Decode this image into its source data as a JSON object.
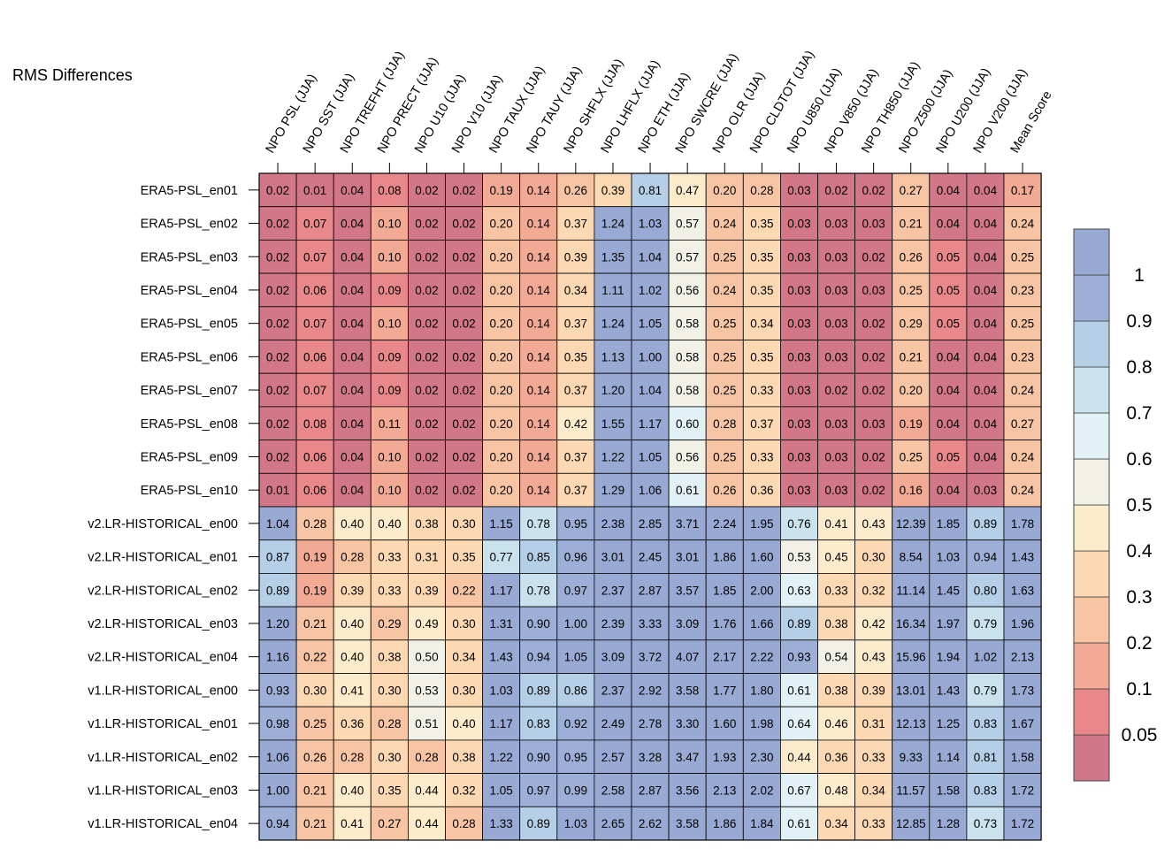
{
  "chart_data": {
    "type": "heatmap",
    "title": "RMS Differences",
    "columns": [
      "NPO PSL (JJA)",
      "NPO SST (JJA)",
      "NPO TREFHT (JJA)",
      "NPO PRECT (JJA)",
      "NPO U10 (JJA)",
      "NPO V10 (JJA)",
      "NPO TAUX (JJA)",
      "NPO TAUY (JJA)",
      "NPO SHFLX (JJA)",
      "NPO LHFLX (JJA)",
      "NPO ETH (JJA)",
      "NPO SWCRE (JJA)",
      "NPO OLR (JJA)",
      "NPO CLDTOT (JJA)",
      "NPO U850 (JJA)",
      "NPO V850 (JJA)",
      "NPO TH850 (JJA)",
      "NPO Z500 (JJA)",
      "NPO U200 (JJA)",
      "NPO V200 (JJA)",
      "Mean Score"
    ],
    "rows": [
      "ERA5-PSL_en01",
      "ERA5-PSL_en02",
      "ERA5-PSL_en03",
      "ERA5-PSL_en04",
      "ERA5-PSL_en05",
      "ERA5-PSL_en06",
      "ERA5-PSL_en07",
      "ERA5-PSL_en08",
      "ERA5-PSL_en09",
      "ERA5-PSL_en10",
      "v2.LR-HISTORICAL_en00",
      "v2.LR-HISTORICAL_en01",
      "v2.LR-HISTORICAL_en02",
      "v2.LR-HISTORICAL_en03",
      "v2.LR-HISTORICAL_en04",
      "v1.LR-HISTORICAL_en00",
      "v1.LR-HISTORICAL_en01",
      "v1.LR-HISTORICAL_en02",
      "v1.LR-HISTORICAL_en03",
      "v1.LR-HISTORICAL_en04"
    ],
    "values": [
      [
        "0.02",
        "0.01",
        "0.04",
        "0.08",
        "0.02",
        "0.02",
        "0.19",
        "0.14",
        "0.26",
        "0.39",
        "0.81",
        "0.47",
        "0.20",
        "0.28",
        "0.03",
        "0.02",
        "0.02",
        "0.27",
        "0.04",
        "0.04",
        "0.17"
      ],
      [
        "0.02",
        "0.07",
        "0.04",
        "0.10",
        "0.02",
        "0.02",
        "0.20",
        "0.14",
        "0.37",
        "1.24",
        "1.03",
        "0.57",
        "0.24",
        "0.35",
        "0.03",
        "0.03",
        "0.03",
        "0.21",
        "0.04",
        "0.04",
        "0.24"
      ],
      [
        "0.02",
        "0.07",
        "0.04",
        "0.10",
        "0.02",
        "0.02",
        "0.20",
        "0.14",
        "0.39",
        "1.35",
        "1.04",
        "0.57",
        "0.25",
        "0.35",
        "0.03",
        "0.03",
        "0.02",
        "0.26",
        "0.05",
        "0.04",
        "0.25"
      ],
      [
        "0.02",
        "0.06",
        "0.04",
        "0.09",
        "0.02",
        "0.02",
        "0.20",
        "0.14",
        "0.34",
        "1.11",
        "1.02",
        "0.56",
        "0.24",
        "0.35",
        "0.03",
        "0.03",
        "0.03",
        "0.25",
        "0.05",
        "0.04",
        "0.23"
      ],
      [
        "0.02",
        "0.07",
        "0.04",
        "0.10",
        "0.02",
        "0.02",
        "0.20",
        "0.14",
        "0.37",
        "1.24",
        "1.05",
        "0.58",
        "0.25",
        "0.34",
        "0.03",
        "0.03",
        "0.02",
        "0.29",
        "0.05",
        "0.04",
        "0.25"
      ],
      [
        "0.02",
        "0.06",
        "0.04",
        "0.09",
        "0.02",
        "0.02",
        "0.20",
        "0.14",
        "0.35",
        "1.13",
        "1.00",
        "0.58",
        "0.25",
        "0.35",
        "0.03",
        "0.03",
        "0.02",
        "0.21",
        "0.04",
        "0.04",
        "0.23"
      ],
      [
        "0.02",
        "0.07",
        "0.04",
        "0.09",
        "0.02",
        "0.02",
        "0.20",
        "0.14",
        "0.37",
        "1.20",
        "1.04",
        "0.58",
        "0.25",
        "0.33",
        "0.03",
        "0.02",
        "0.02",
        "0.20",
        "0.04",
        "0.04",
        "0.24"
      ],
      [
        "0.02",
        "0.08",
        "0.04",
        "0.11",
        "0.02",
        "0.02",
        "0.20",
        "0.14",
        "0.42",
        "1.55",
        "1.17",
        "0.60",
        "0.28",
        "0.37",
        "0.03",
        "0.03",
        "0.03",
        "0.19",
        "0.04",
        "0.04",
        "0.27"
      ],
      [
        "0.02",
        "0.06",
        "0.04",
        "0.10",
        "0.02",
        "0.02",
        "0.20",
        "0.14",
        "0.37",
        "1.22",
        "1.05",
        "0.56",
        "0.25",
        "0.33",
        "0.03",
        "0.03",
        "0.02",
        "0.25",
        "0.05",
        "0.04",
        "0.24"
      ],
      [
        "0.01",
        "0.06",
        "0.04",
        "0.10",
        "0.02",
        "0.02",
        "0.20",
        "0.14",
        "0.37",
        "1.29",
        "1.06",
        "0.61",
        "0.26",
        "0.36",
        "0.03",
        "0.03",
        "0.02",
        "0.16",
        "0.04",
        "0.03",
        "0.24"
      ],
      [
        "1.04",
        "0.28",
        "0.40",
        "0.40",
        "0.38",
        "0.30",
        "1.15",
        "0.78",
        "0.95",
        "2.38",
        "2.85",
        "3.71",
        "2.24",
        "1.95",
        "0.76",
        "0.41",
        "0.43",
        "12.39",
        "1.85",
        "0.89",
        "1.78"
      ],
      [
        "0.87",
        "0.19",
        "0.28",
        "0.33",
        "0.31",
        "0.35",
        "0.77",
        "0.85",
        "0.96",
        "3.01",
        "2.45",
        "3.01",
        "1.86",
        "1.60",
        "0.53",
        "0.45",
        "0.30",
        "8.54",
        "1.03",
        "0.94",
        "1.43"
      ],
      [
        "0.89",
        "0.19",
        "0.39",
        "0.33",
        "0.39",
        "0.22",
        "1.17",
        "0.78",
        "0.97",
        "2.37",
        "2.87",
        "3.57",
        "1.85",
        "2.00",
        "0.63",
        "0.33",
        "0.32",
        "11.14",
        "1.45",
        "0.80",
        "1.63"
      ],
      [
        "1.20",
        "0.21",
        "0.40",
        "0.29",
        "0.49",
        "0.30",
        "1.31",
        "0.90",
        "1.00",
        "2.39",
        "3.33",
        "3.09",
        "1.76",
        "1.66",
        "0.89",
        "0.38",
        "0.42",
        "16.34",
        "1.97",
        "0.79",
        "1.96"
      ],
      [
        "1.16",
        "0.22",
        "0.40",
        "0.38",
        "0.50",
        "0.34",
        "1.43",
        "0.94",
        "1.05",
        "3.09",
        "3.72",
        "4.07",
        "2.17",
        "2.22",
        "0.93",
        "0.54",
        "0.43",
        "15.96",
        "1.94",
        "1.02",
        "2.13"
      ],
      [
        "0.93",
        "0.30",
        "0.41",
        "0.30",
        "0.53",
        "0.30",
        "1.03",
        "0.89",
        "0.86",
        "2.37",
        "2.92",
        "3.58",
        "1.77",
        "1.80",
        "0.61",
        "0.38",
        "0.39",
        "13.01",
        "1.43",
        "0.79",
        "1.73"
      ],
      [
        "0.98",
        "0.25",
        "0.36",
        "0.28",
        "0.51",
        "0.40",
        "1.17",
        "0.83",
        "0.92",
        "2.49",
        "2.78",
        "3.30",
        "1.60",
        "1.98",
        "0.64",
        "0.46",
        "0.31",
        "12.13",
        "1.25",
        "0.83",
        "1.67"
      ],
      [
        "1.06",
        "0.26",
        "0.28",
        "0.30",
        "0.28",
        "0.38",
        "1.22",
        "0.90",
        "0.95",
        "2.57",
        "3.28",
        "3.47",
        "1.93",
        "2.30",
        "0.44",
        "0.36",
        "0.33",
        "9.33",
        "1.14",
        "0.81",
        "1.58"
      ],
      [
        "1.00",
        "0.21",
        "0.40",
        "0.35",
        "0.44",
        "0.32",
        "1.05",
        "0.97",
        "0.99",
        "2.58",
        "2.87",
        "3.56",
        "2.13",
        "2.02",
        "0.67",
        "0.48",
        "0.34",
        "11.57",
        "1.58",
        "0.83",
        "1.72"
      ],
      [
        "0.94",
        "0.21",
        "0.41",
        "0.27",
        "0.44",
        "0.28",
        "1.33",
        "0.89",
        "1.03",
        "2.65",
        "2.62",
        "3.58",
        "1.86",
        "1.84",
        "0.61",
        "0.34",
        "0.33",
        "12.85",
        "1.28",
        "0.73",
        "1.72"
      ]
    ],
    "colorbar": {
      "labels": [
        "1",
        "0.9",
        "0.8",
        "0.7",
        "0.6",
        "0.5",
        "0.4",
        "0.3",
        "0.2",
        "0.1",
        "0.05"
      ],
      "thresholds": [
        0.05,
        0.1,
        0.2,
        0.3,
        0.4,
        0.5,
        0.6,
        0.7,
        0.8,
        0.9,
        1
      ],
      "colors_low_to_high": [
        "#d17787",
        "#e8888a",
        "#f3aa95",
        "#f8c5a4",
        "#fcd9b2",
        "#fdeccc",
        "#f2f1e8",
        "#e2f1f5",
        "#c9e2ee",
        "#b5cfe6",
        "#9dafd6",
        "#98a9d4"
      ]
    }
  }
}
